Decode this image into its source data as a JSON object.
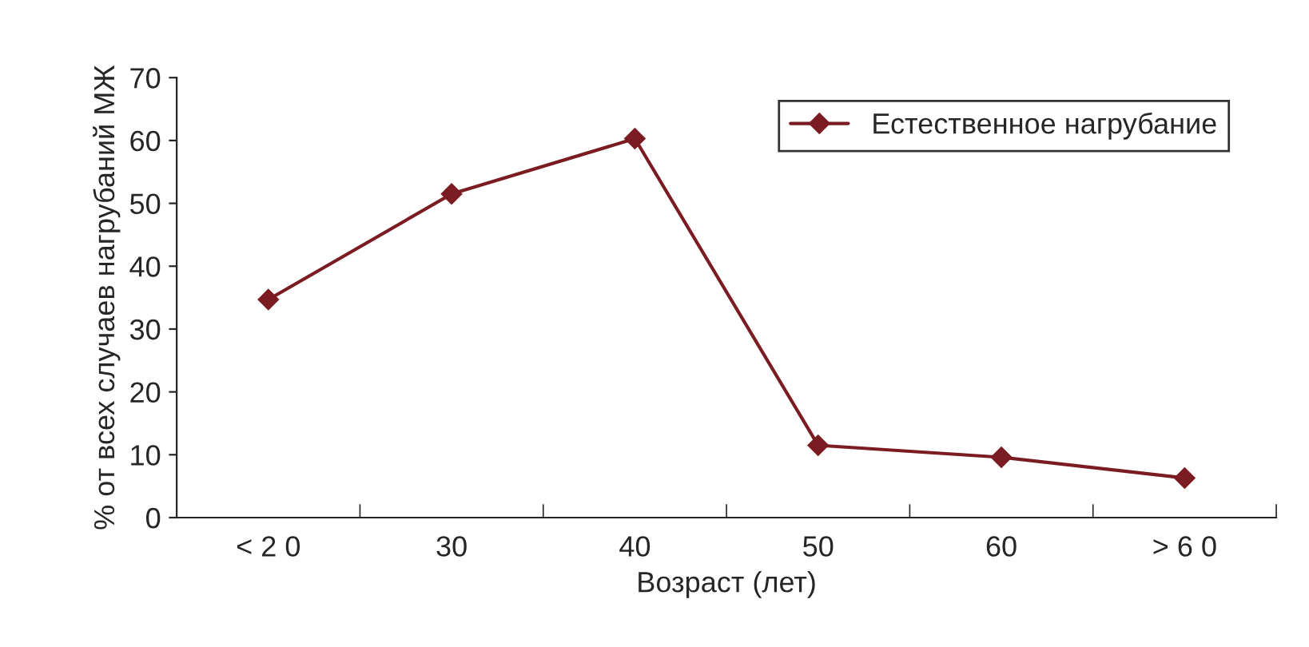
{
  "chart_data": {
    "type": "line",
    "xlabel": "Возраст (лет)",
    "ylabel": "% от всех случаев нагрубаний МЖ",
    "categories": [
      "< 2 0",
      "30",
      "40",
      "50",
      "60",
      "> 6 0"
    ],
    "series": [
      {
        "name": "Естественное нагрубание",
        "color": "#7b1c22",
        "values": [
          34.7,
          51.5,
          60.3,
          11.5,
          9.6,
          6.3
        ]
      }
    ],
    "ylim": [
      0,
      70
    ],
    "yticks": [
      0,
      10,
      20,
      30,
      40,
      50,
      60,
      70
    ],
    "grid": false,
    "legend": "top right",
    "marker": "diamond",
    "line_style": "solid"
  }
}
